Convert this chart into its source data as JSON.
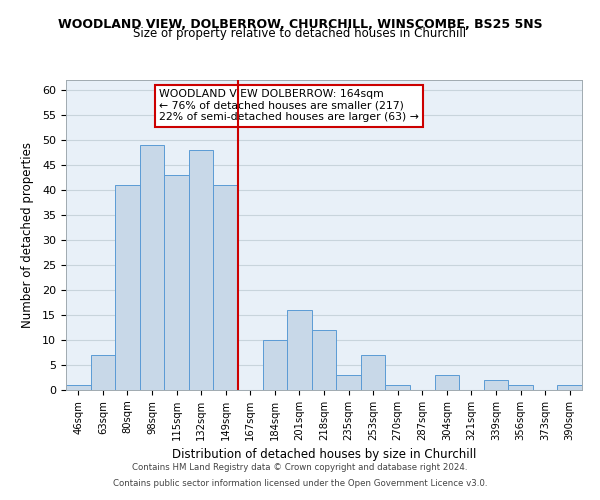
{
  "title": "WOODLAND VIEW, DOLBERROW, CHURCHILL, WINSCOMBE, BS25 5NS",
  "subtitle": "Size of property relative to detached houses in Churchill",
  "xlabel": "Distribution of detached houses by size in Churchill",
  "ylabel": "Number of detached properties",
  "bar_color": "#c8d8e8",
  "bar_edge_color": "#5b9bd5",
  "bin_labels": [
    "46sqm",
    "63sqm",
    "80sqm",
    "98sqm",
    "115sqm",
    "132sqm",
    "149sqm",
    "167sqm",
    "184sqm",
    "201sqm",
    "218sqm",
    "235sqm",
    "253sqm",
    "270sqm",
    "287sqm",
    "304sqm",
    "321sqm",
    "339sqm",
    "356sqm",
    "373sqm",
    "390sqm"
  ],
  "bar_heights": [
    1,
    7,
    41,
    49,
    43,
    48,
    41,
    0,
    10,
    16,
    12,
    3,
    7,
    1,
    0,
    3,
    0,
    2,
    1,
    0,
    1
  ],
  "marker_index": 7,
  "marker_color": "#cc0000",
  "ylim": [
    0,
    62
  ],
  "yticks": [
    0,
    5,
    10,
    15,
    20,
    25,
    30,
    35,
    40,
    45,
    50,
    55,
    60
  ],
  "annotation_title": "WOODLAND VIEW DOLBERROW: 164sqm",
  "annotation_line1": "← 76% of detached houses are smaller (217)",
  "annotation_line2": "22% of semi-detached houses are larger (63) →",
  "footer_line1": "Contains HM Land Registry data © Crown copyright and database right 2024.",
  "footer_line2": "Contains public sector information licensed under the Open Government Licence v3.0.",
  "background_color": "#ffffff",
  "plot_bg_color": "#e8f0f8",
  "grid_color": "#c8d4dc"
}
